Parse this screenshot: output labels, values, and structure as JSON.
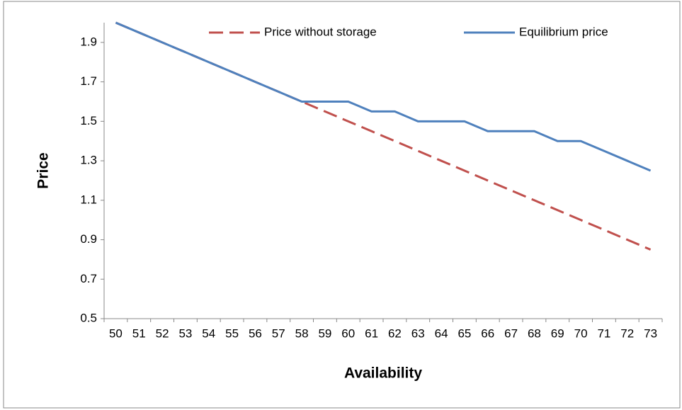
{
  "chart_data": {
    "type": "line",
    "xlabel": "Availability",
    "ylabel": "Price",
    "categories": [
      "50",
      "51",
      "52",
      "53",
      "54",
      "55",
      "56",
      "57",
      "58",
      "59",
      "60",
      "61",
      "62",
      "63",
      "64",
      "65",
      "66",
      "67",
      "68",
      "69",
      "70",
      "71",
      "72",
      "73"
    ],
    "series": [
      {
        "name": "Price without storage",
        "color": "#c0504d",
        "dashed": true,
        "values": [
          2.0,
          1.95,
          1.9,
          1.85,
          1.8,
          1.75,
          1.7,
          1.65,
          1.6,
          1.55,
          1.5,
          1.45,
          1.4,
          1.35,
          1.3,
          1.25,
          1.2,
          1.15,
          1.1,
          1.05,
          1.0,
          0.95,
          0.9,
          0.85
        ]
      },
      {
        "name": "Equilibrium price",
        "color": "#4f81bd",
        "dashed": false,
        "values": [
          2.0,
          1.95,
          1.9,
          1.85,
          1.8,
          1.75,
          1.7,
          1.65,
          1.6,
          1.6,
          1.6,
          1.55,
          1.55,
          1.5,
          1.5,
          1.5,
          1.45,
          1.45,
          1.45,
          1.4,
          1.4,
          1.35,
          1.3,
          1.25
        ]
      }
    ],
    "ylim": [
      0.5,
      2.0
    ],
    "yticks": [
      0.5,
      0.7,
      0.9,
      1.1,
      1.3,
      1.5,
      1.7,
      1.9
    ],
    "grid": false
  }
}
